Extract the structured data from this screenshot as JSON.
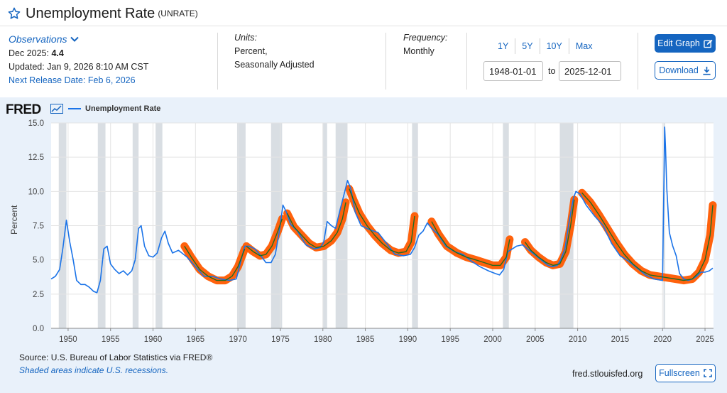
{
  "header": {
    "title": "Unemployment Rate",
    "series_id": "(UNRATE)"
  },
  "observations": {
    "label": "Observations",
    "period": "Dec 2025:",
    "value": "4.4",
    "updated": "Updated: Jan 9, 2026 8:10 AM CST",
    "next_release": "Next Release Date: Feb 6, 2026"
  },
  "units": {
    "label": "Units:",
    "line1": "Percent,",
    "line2": "Seasonally Adjusted"
  },
  "frequency": {
    "label": "Frequency:",
    "value": "Monthly"
  },
  "range": {
    "buttons": [
      "1Y",
      "5Y",
      "10Y",
      "Max"
    ],
    "start": "1948-01-01",
    "to_label": "to",
    "end": "2025-12-01"
  },
  "actions": {
    "edit": "Edit Graph",
    "download": "Download",
    "fullscreen": "Fullscreen"
  },
  "graph": {
    "logo": "FRED",
    "legend": "Unemployment Rate",
    "source": "Source: U.S. Bureau of Labor Statistics via FRED®",
    "shaded_note": "Shaded areas indicate U.S. recessions.",
    "url": "fred.stlouisfed.org"
  },
  "colors": {
    "line": "#1a73e8",
    "highlight": "#ff5a00",
    "trend": "#1e6b22",
    "recession": "#d9dee3",
    "accent": "#1565c0"
  },
  "chart_data": {
    "type": "line",
    "title": "Unemployment Rate",
    "ylabel": "Percent",
    "xlabel": "",
    "xlim": [
      1948.0,
      2026.0
    ],
    "ylim": [
      0,
      15
    ],
    "x_ticks": [
      1950,
      1955,
      1960,
      1965,
      1970,
      1975,
      1980,
      1985,
      1990,
      1995,
      2000,
      2005,
      2010,
      2015,
      2020,
      2025
    ],
    "y_ticks": [
      "0.0",
      "2.5",
      "5.0",
      "7.5",
      "10.0",
      "12.5",
      "15.0"
    ],
    "recessions": [
      [
        1948.9,
        1949.8
      ],
      [
        1953.5,
        1954.4
      ],
      [
        1957.6,
        1958.3
      ],
      [
        1960.3,
        1961.1
      ],
      [
        1969.9,
        1970.9
      ],
      [
        1973.9,
        1975.2
      ],
      [
        1980.0,
        1980.5
      ],
      [
        1981.5,
        1982.9
      ],
      [
        1990.5,
        1991.2
      ],
      [
        2001.2,
        2001.9
      ],
      [
        2007.9,
        2009.5
      ],
      [
        2020.1,
        2020.3
      ]
    ],
    "series": [
      {
        "name": "Unemployment Rate",
        "x": [
          1948.0,
          1948.5,
          1949.0,
          1949.4,
          1949.8,
          1950.2,
          1950.6,
          1951.0,
          1951.5,
          1952.0,
          1952.5,
          1953.0,
          1953.4,
          1953.8,
          1954.2,
          1954.6,
          1955.0,
          1955.5,
          1956.0,
          1956.5,
          1957.0,
          1957.5,
          1957.9,
          1958.3,
          1958.6,
          1959.0,
          1959.5,
          1960.0,
          1960.5,
          1961.0,
          1961.4,
          1961.8,
          1962.3,
          1963.0,
          1964.0,
          1965.0,
          1966.0,
          1967.0,
          1968.0,
          1969.0,
          1969.8,
          1970.3,
          1970.8,
          1971.3,
          1972.0,
          1972.7,
          1973.3,
          1973.9,
          1974.4,
          1974.9,
          1975.3,
          1975.7,
          1976.2,
          1977.0,
          1978.0,
          1979.0,
          1979.7,
          1980.1,
          1980.5,
          1981.0,
          1981.5,
          1982.0,
          1982.5,
          1982.9,
          1983.3,
          1983.8,
          1984.5,
          1985.5,
          1986.5,
          1987.5,
          1988.5,
          1989.5,
          1990.3,
          1990.8,
          1991.3,
          1991.8,
          1992.3,
          1992.8,
          1993.5,
          1994.5,
          1995.5,
          1996.5,
          1997.5,
          1998.5,
          1999.5,
          2000.3,
          2000.8,
          2001.3,
          2001.8,
          2002.3,
          2002.8,
          2003.5,
          2004.5,
          2005.5,
          2006.5,
          2007.0,
          2007.6,
          2008.0,
          2008.5,
          2009.0,
          2009.5,
          2009.8,
          2010.3,
          2011.0,
          2012.0,
          2013.0,
          2014.0,
          2015.0,
          2016.0,
          2017.0,
          2018.0,
          2019.0,
          2020.0,
          2020.25,
          2020.35,
          2020.5,
          2020.8,
          2021.2,
          2021.6,
          2022.0,
          2022.5,
          2023.0,
          2023.5,
          2024.0,
          2024.5,
          2025.0,
          2025.5,
          2025.92
        ],
        "y": [
          3.6,
          3.8,
          4.3,
          5.9,
          7.9,
          6.3,
          5.0,
          3.5,
          3.2,
          3.2,
          3.0,
          2.7,
          2.6,
          3.5,
          5.8,
          6.0,
          4.7,
          4.3,
          4.0,
          4.2,
          3.9,
          4.2,
          5.0,
          7.3,
          7.5,
          6.0,
          5.3,
          5.2,
          5.5,
          6.6,
          7.1,
          6.2,
          5.5,
          5.7,
          5.2,
          4.5,
          3.8,
          3.8,
          3.6,
          3.5,
          3.6,
          4.8,
          6.0,
          6.0,
          5.8,
          5.3,
          4.8,
          4.8,
          5.4,
          7.2,
          9.0,
          8.5,
          7.6,
          7.1,
          6.1,
          5.8,
          5.9,
          6.3,
          7.8,
          7.5,
          7.3,
          8.6,
          9.8,
          10.8,
          10.2,
          8.5,
          7.5,
          7.2,
          7.0,
          6.2,
          5.4,
          5.3,
          5.4,
          5.9,
          6.8,
          7.1,
          7.7,
          7.3,
          6.9,
          6.0,
          5.6,
          5.4,
          4.9,
          4.5,
          4.2,
          4.0,
          3.9,
          4.3,
          5.6,
          5.8,
          6.0,
          6.1,
          5.6,
          5.1,
          4.6,
          4.5,
          4.6,
          5.0,
          5.8,
          7.8,
          9.5,
          10.0,
          9.8,
          9.0,
          8.2,
          7.5,
          6.2,
          5.3,
          4.9,
          4.4,
          3.9,
          3.6,
          3.5,
          14.7,
          13.2,
          10.2,
          7.0,
          6.0,
          5.3,
          4.0,
          3.6,
          3.5,
          3.6,
          3.8,
          4.1,
          4.1,
          4.2,
          4.4
        ]
      },
      {
        "name": "Fitted Trend Overlay",
        "segments": [
          {
            "x": [
              1963.7,
              1964.5,
              1965.5,
              1966.5,
              1967.5,
              1968.5,
              1969.3,
              1970.0,
              1970.8
            ],
            "y": [
              6.0,
              5.2,
              4.3,
              3.8,
              3.5,
              3.5,
              3.8,
              4.5,
              5.8
            ]
          },
          {
            "x": [
              1971.0,
              1971.8,
              1972.6,
              1973.3,
              1974.0,
              1974.7,
              1975.2
            ],
            "y": [
              6.0,
              5.6,
              5.3,
              5.4,
              6.0,
              7.1,
              8.0
            ]
          },
          {
            "x": [
              1975.8,
              1976.6,
              1977.5,
              1978.4,
              1979.2,
              1980.1,
              1981.0,
              1981.7,
              1982.3,
              1982.7
            ],
            "y": [
              8.4,
              7.4,
              6.8,
              6.2,
              5.9,
              6.0,
              6.4,
              7.0,
              8.0,
              9.2
            ]
          },
          {
            "x": [
              1983.1,
              1983.6,
              1984.3,
              1985.2,
              1986.1,
              1987.0,
              1988.0,
              1988.9,
              1989.8,
              1990.4,
              1990.8
            ],
            "y": [
              10.2,
              9.4,
              8.4,
              7.5,
              6.8,
              6.2,
              5.7,
              5.5,
              5.6,
              6.3,
              8.2
            ]
          },
          {
            "x": [
              1992.8,
              1993.6,
              1994.6,
              1995.8,
              1996.9,
              1998.0,
              1999.0,
              2000.0,
              2000.9,
              2001.6,
              2002.0
            ],
            "y": [
              7.8,
              6.9,
              6.0,
              5.5,
              5.2,
              5.0,
              4.8,
              4.6,
              4.6,
              5.2,
              6.5
            ]
          },
          {
            "x": [
              2003.8,
              2004.5,
              2005.4,
              2006.3,
              2007.1,
              2007.9,
              2008.6,
              2009.2,
              2009.6
            ],
            "y": [
              6.3,
              5.7,
              5.2,
              4.8,
              4.6,
              4.7,
              5.6,
              7.6,
              9.4
            ]
          },
          {
            "x": [
              2010.5,
              2011.5,
              2012.5,
              2013.5,
              2014.5,
              2015.5,
              2016.5,
              2017.5,
              2018.5,
              2019.5,
              2020.5,
              2021.5,
              2022.5,
              2023.5,
              2024.3,
              2025.0,
              2025.6,
              2025.92
            ],
            "y": [
              9.9,
              9.2,
              8.3,
              7.3,
              6.3,
              5.4,
              4.7,
              4.2,
              3.9,
              3.8,
              3.7,
              3.6,
              3.5,
              3.6,
              4.1,
              5.0,
              6.8,
              9.0
            ]
          }
        ]
      }
    ]
  }
}
